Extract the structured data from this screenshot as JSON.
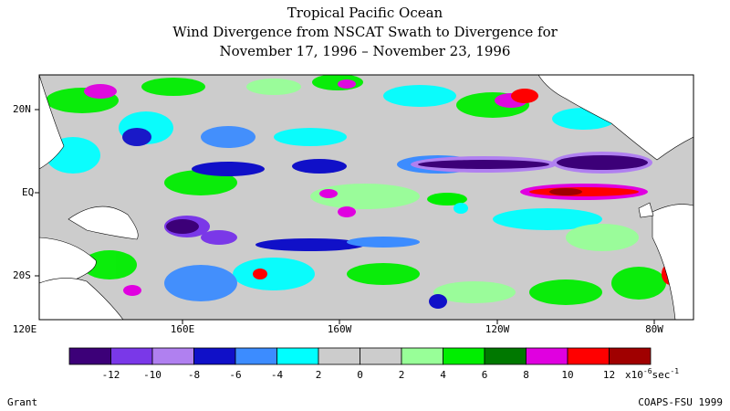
{
  "title": {
    "line1": "Tropical Pacific Ocean",
    "line2": "Wind Divergence from NSCAT Swath to Divergence for",
    "line3": "November 17, 1996 – November 23, 1996"
  },
  "map": {
    "lat_labels": [
      "20N",
      "EQ",
      "20S"
    ],
    "lon_labels": [
      "120E",
      "160E",
      "160W",
      "120W",
      "80W"
    ]
  },
  "colorbar": {
    "colors": [
      "#3c0078",
      "#7a38e8",
      "#b080f0",
      "#1010c8",
      "#3c8cff",
      "#00ffff",
      "#cccccc",
      "#cccccc",
      "#98ff98",
      "#00ee00",
      "#007800",
      "#e000e0",
      "#ff0000",
      "#a00000"
    ],
    "tick_labels": [
      "-12",
      "-10",
      "-8",
      "-6",
      "-4",
      "2",
      "0",
      "2",
      "4",
      "6",
      "8",
      "10",
      "12"
    ],
    "units_prefix": "x10",
    "units_exponent": "-6",
    "units_suffix": "sec",
    "units_suffix_exponent": "-1"
  },
  "footer": {
    "left": "Grant",
    "right": "COAPS-FSU 1999"
  }
}
